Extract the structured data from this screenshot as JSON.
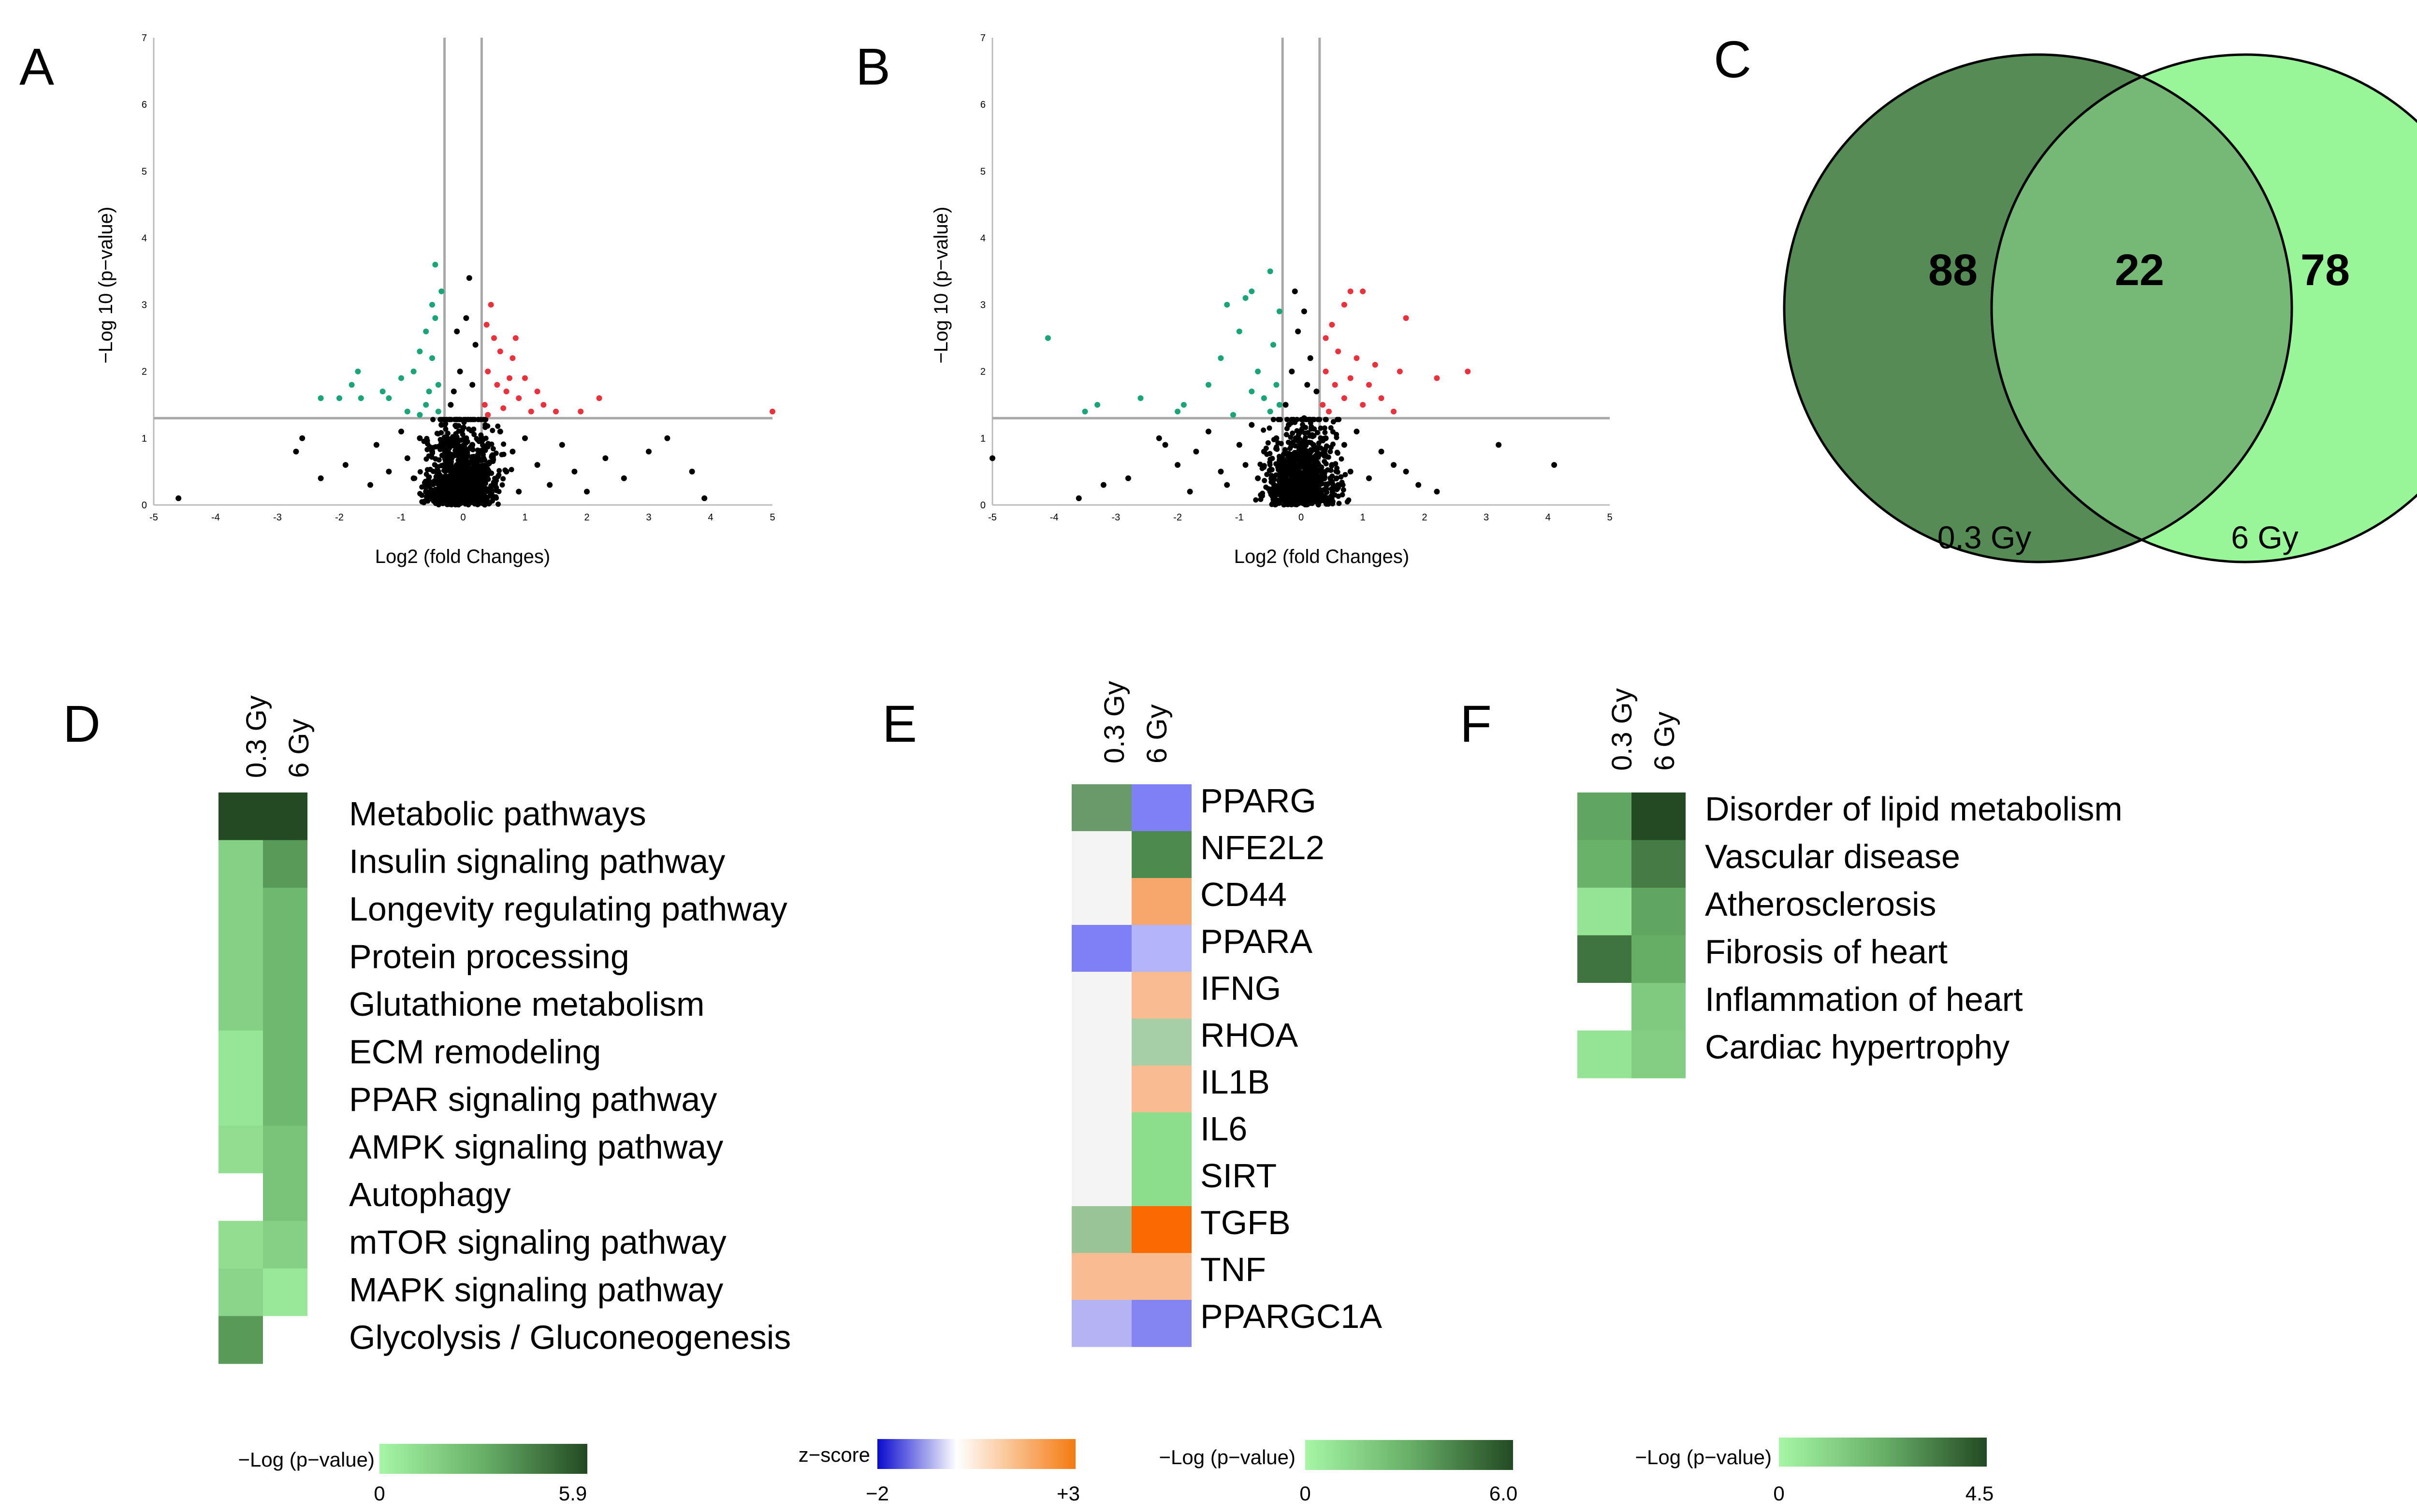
{
  "panels": [
    "A",
    "B",
    "C",
    "D",
    "E",
    "F"
  ],
  "volcano": [
    {
      "panel": "A",
      "type": "scatter",
      "xlabel": "Log2 (fold Changes)",
      "ylabel": "−Log 10 (p−value)",
      "xlim": [
        -5,
        5
      ],
      "ylim": [
        0,
        7
      ],
      "xticks": [
        -5,
        -4,
        -3,
        -2,
        -1,
        0,
        1,
        2,
        3,
        4,
        5
      ],
      "yticks": [
        0,
        1,
        2,
        3,
        4,
        5,
        6,
        7
      ],
      "vlines": [
        -0.3,
        0.3
      ],
      "hline": 1.3,
      "colors": {
        "down": "#1aa478",
        "up": "#e8333f",
        "ns": "#000000"
      },
      "down": [
        [
          -2.3,
          1.6
        ],
        [
          -2.0,
          1.6
        ],
        [
          -1.8,
          1.8
        ],
        [
          -1.7,
          2.0
        ],
        [
          -1.65,
          1.6
        ],
        [
          -1.2,
          1.6
        ],
        [
          -1.0,
          1.9
        ],
        [
          -0.8,
          2.0
        ],
        [
          -0.7,
          2.3
        ],
        [
          -0.6,
          2.6
        ],
        [
          -0.5,
          3.0
        ],
        [
          -0.45,
          3.6
        ],
        [
          -0.4,
          1.8
        ],
        [
          -0.9,
          1.4
        ],
        [
          -0.6,
          1.5
        ],
        [
          -0.5,
          2.2
        ],
        [
          -0.7,
          1.35
        ],
        [
          -0.4,
          1.4
        ],
        [
          -0.35,
          3.2
        ],
        [
          -1.3,
          1.7
        ],
        [
          -0.55,
          1.7
        ],
        [
          -0.45,
          2.8
        ]
      ],
      "up": [
        [
          0.35,
          1.5
        ],
        [
          0.4,
          2.0
        ],
        [
          0.45,
          3.0
        ],
        [
          0.5,
          2.5
        ],
        [
          0.55,
          1.8
        ],
        [
          0.6,
          2.3
        ],
        [
          0.7,
          1.7
        ],
        [
          0.75,
          1.9
        ],
        [
          0.8,
          2.2
        ],
        [
          0.9,
          1.6
        ],
        [
          1.0,
          1.9
        ],
        [
          1.1,
          1.4
        ],
        [
          1.2,
          1.7
        ],
        [
          1.3,
          1.5
        ],
        [
          1.5,
          1.4
        ],
        [
          1.9,
          1.4
        ],
        [
          2.2,
          1.6
        ],
        [
          5.0,
          1.4
        ],
        [
          0.4,
          1.35
        ],
        [
          0.65,
          1.45
        ],
        [
          0.85,
          2.5
        ],
        [
          0.38,
          2.7
        ]
      ],
      "ns": [
        [
          -4.6,
          0.1
        ],
        [
          -2.7,
          0.8
        ],
        [
          -2.6,
          1.0
        ],
        [
          -2.3,
          0.4
        ],
        [
          -1.9,
          0.6
        ],
        [
          -1.5,
          0.3
        ],
        [
          -1.4,
          0.9
        ],
        [
          -1.2,
          0.5
        ],
        [
          -1.0,
          1.1
        ],
        [
          -0.9,
          0.7
        ],
        [
          -0.8,
          0.4
        ],
        [
          -0.7,
          1.0
        ],
        [
          -0.6,
          0.2
        ],
        [
          -0.5,
          0.8
        ],
        [
          -0.4,
          0.5
        ],
        [
          -0.35,
          1.2
        ],
        [
          -0.3,
          0.3
        ],
        [
          -0.25,
          0.9
        ],
        [
          -0.2,
          0.1
        ],
        [
          -0.15,
          1.7
        ],
        [
          -0.1,
          0.6
        ],
        [
          -0.05,
          2.0
        ],
        [
          0.0,
          0.2
        ],
        [
          0.05,
          1.0
        ],
        [
          0.1,
          0.4
        ],
        [
          0.15,
          1.8
        ],
        [
          0.2,
          2.4
        ],
        [
          0.25,
          0.7
        ],
        [
          0.1,
          3.4
        ],
        [
          0.3,
          0.5
        ],
        [
          0.4,
          0.9
        ],
        [
          0.5,
          0.3
        ],
        [
          0.6,
          1.1
        ],
        [
          0.7,
          0.5
        ],
        [
          0.8,
          0.8
        ],
        [
          0.9,
          0.2
        ],
        [
          1.0,
          1.0
        ],
        [
          1.2,
          0.6
        ],
        [
          1.4,
          0.3
        ],
        [
          1.6,
          0.9
        ],
        [
          1.8,
          0.5
        ],
        [
          2.0,
          0.2
        ],
        [
          2.3,
          0.7
        ],
        [
          2.6,
          0.4
        ],
        [
          3.0,
          0.8
        ],
        [
          3.3,
          1.0
        ],
        [
          3.7,
          0.5
        ],
        [
          3.9,
          0.1
        ],
        [
          -0.2,
          1.5
        ],
        [
          0.15,
          0.9
        ],
        [
          -0.1,
          2.6
        ],
        [
          0.05,
          2.8
        ]
      ]
    },
    {
      "panel": "B",
      "type": "scatter",
      "xlabel": "Log2 (fold Changes)",
      "ylabel": "−Log 10 (p−value)",
      "xlim": [
        -5,
        5
      ],
      "ylim": [
        0,
        7
      ],
      "xticks": [
        -5,
        -4,
        -3,
        -2,
        -1,
        0,
        1,
        2,
        3,
        4,
        5
      ],
      "yticks": [
        0,
        1,
        2,
        3,
        4,
        5,
        6,
        7
      ],
      "vlines": [
        -0.3,
        0.3
      ],
      "hline": 1.3,
      "colors": {
        "down": "#1aa478",
        "up": "#e8333f",
        "ns": "#000000"
      },
      "down": [
        [
          -4.1,
          2.5
        ],
        [
          -3.5,
          1.4
        ],
        [
          -3.3,
          1.5
        ],
        [
          -2.6,
          1.6
        ],
        [
          -2.0,
          1.4
        ],
        [
          -1.9,
          1.5
        ],
        [
          -1.5,
          1.8
        ],
        [
          -1.3,
          2.2
        ],
        [
          -1.2,
          3.0
        ],
        [
          -1.0,
          2.6
        ],
        [
          -0.9,
          3.1
        ],
        [
          -0.8,
          3.2
        ],
        [
          -0.7,
          2.0
        ],
        [
          -0.6,
          1.6
        ],
        [
          -0.5,
          3.5
        ],
        [
          -0.5,
          1.4
        ],
        [
          -0.45,
          2.4
        ],
        [
          -0.4,
          1.8
        ],
        [
          -0.35,
          1.5
        ],
        [
          -0.35,
          2.9
        ],
        [
          -1.1,
          1.35
        ],
        [
          -0.8,
          1.7
        ]
      ],
      "up": [
        [
          0.35,
          1.5
        ],
        [
          0.4,
          2.0
        ],
        [
          0.5,
          2.7
        ],
        [
          0.55,
          1.8
        ],
        [
          0.6,
          2.3
        ],
        [
          0.7,
          1.6
        ],
        [
          0.8,
          1.9
        ],
        [
          0.9,
          2.2
        ],
        [
          1.0,
          1.5
        ],
        [
          1.1,
          1.8
        ],
        [
          1.2,
          2.1
        ],
        [
          1.3,
          1.6
        ],
        [
          0.8,
          3.2
        ],
        [
          0.7,
          3.0
        ],
        [
          1.5,
          1.4
        ],
        [
          1.6,
          2.0
        ],
        [
          1.7,
          2.8
        ],
        [
          2.2,
          1.9
        ],
        [
          2.7,
          2.0
        ],
        [
          0.45,
          1.4
        ],
        [
          1.0,
          3.2
        ],
        [
          0.4,
          2.5
        ]
      ],
      "ns": [
        [
          -5.0,
          0.7
        ],
        [
          -3.6,
          0.1
        ],
        [
          -3.2,
          0.3
        ],
        [
          -2.8,
          0.4
        ],
        [
          -2.3,
          1.0
        ],
        [
          -2.2,
          0.9
        ],
        [
          -2.0,
          0.6
        ],
        [
          -1.8,
          0.2
        ],
        [
          -1.7,
          0.8
        ],
        [
          -1.5,
          1.1
        ],
        [
          -1.3,
          0.5
        ],
        [
          -1.2,
          0.3
        ],
        [
          -1.0,
          0.9
        ],
        [
          -0.9,
          0.6
        ],
        [
          -0.8,
          1.2
        ],
        [
          -0.7,
          0.4
        ],
        [
          -0.6,
          0.8
        ],
        [
          -0.5,
          0.2
        ],
        [
          -0.4,
          1.0
        ],
        [
          -0.3,
          0.6
        ],
        [
          -0.25,
          1.5
        ],
        [
          -0.2,
          0.3
        ],
        [
          -0.15,
          2.0
        ],
        [
          -0.1,
          0.7
        ],
        [
          -0.05,
          2.6
        ],
        [
          0.0,
          0.1
        ],
        [
          0.05,
          1.3
        ],
        [
          0.1,
          0.5
        ],
        [
          0.15,
          2.2
        ],
        [
          0.2,
          0.9
        ],
        [
          0.25,
          1.7
        ],
        [
          0.3,
          0.4
        ],
        [
          0.4,
          1.0
        ],
        [
          0.5,
          0.6
        ],
        [
          0.6,
          0.3
        ],
        [
          0.7,
          0.9
        ],
        [
          0.8,
          0.5
        ],
        [
          0.9,
          1.1
        ],
        [
          1.1,
          0.4
        ],
        [
          1.3,
          0.8
        ],
        [
          1.5,
          0.6
        ],
        [
          1.7,
          0.5
        ],
        [
          1.9,
          0.3
        ],
        [
          2.2,
          0.2
        ],
        [
          3.2,
          0.9
        ],
        [
          4.1,
          0.6
        ],
        [
          -0.1,
          3.2
        ],
        [
          0.05,
          2.9
        ],
        [
          -0.2,
          1.2
        ],
        [
          0.1,
          1.8
        ]
      ]
    }
  ],
  "venn": {
    "type": "venn",
    "sets": [
      {
        "label": "0.3 Gy",
        "only": 88,
        "color": "#558b55"
      },
      {
        "label": "6 Gy",
        "only": 78,
        "color": "#98f598"
      }
    ],
    "overlap": 22,
    "overlap_color": "#76b876"
  },
  "heatmaps": [
    {
      "panel": "D",
      "type": "heatmap",
      "columns": [
        "0.3 Gy",
        "6 Gy"
      ],
      "rows": [
        "Metabolic pathways",
        "Insulin signaling pathway",
        "Longevity regulating pathway",
        "Protein processing",
        "Glutathione metabolism",
        "ECM remodeling",
        "PPAR signaling pathway",
        "AMPK signaling pathway",
        "Autophagy",
        "mTOR signaling pathway",
        "MAPK signaling pathway",
        "Glycolysis / Gluconeogenesis"
      ],
      "values": [
        [
          5.9,
          5.9
        ],
        [
          1.6,
          3.6
        ],
        [
          1.6,
          2.6
        ],
        [
          1.6,
          2.6
        ],
        [
          1.6,
          2.6
        ],
        [
          0.7,
          2.6
        ],
        [
          0.7,
          2.6
        ],
        [
          1.0,
          2.1
        ],
        [
          null,
          2.1
        ],
        [
          1.0,
          1.6
        ],
        [
          1.4,
          0.6
        ],
        [
          3.6,
          null
        ]
      ],
      "legend": {
        "title": "−Log (p−value)",
        "min": "0",
        "max": "5.9"
      }
    },
    {
      "panel": "E",
      "type": "heatmap",
      "columns": [
        "0.3 Gy",
        "6 Gy"
      ],
      "rows": [
        "PPARG",
        "NFE2L2",
        "CD44",
        "PPARA",
        "IFNG",
        "RHOA",
        "IL1B",
        "IL6",
        "SIRT",
        "TGFB",
        "TNF",
        "PPARGC1A"
      ],
      "cell_colors": [
        [
          "#6a9a6a",
          "#8080f5"
        ],
        [
          "#f4f4f4",
          "#4d8a4d"
        ],
        [
          "#f4f4f4",
          "#f7a66c"
        ],
        [
          "#8080f5",
          "#b4b4fa"
        ],
        [
          "#f4f4f4",
          "#f9bb92"
        ],
        [
          "#f4f4f4",
          "#a7cfa7"
        ],
        [
          "#f4f4f4",
          "#f9bb92"
        ],
        [
          "#f4f4f4",
          "#8cde8c"
        ],
        [
          "#f4f4f4",
          "#8cde8c"
        ],
        [
          "#98c498",
          "#fa6a00"
        ],
        [
          "#f9bb92",
          "#f9bb92"
        ],
        [
          "#b4b4f5",
          "#8484f2"
        ]
      ],
      "legend": {
        "title": "z−score",
        "min": "−2",
        "max": "+3"
      }
    },
    {
      "panel": "F",
      "type": "heatmap",
      "columns": [
        "0.3 Gy",
        "6 Gy"
      ],
      "rows": [
        "Disorder of lipid metabolism",
        "Vascular disease",
        "Atherosclerosis",
        "Fibrosis of heart",
        "Inflammation of heart",
        "Cardiac hypertrophy"
      ],
      "values": [
        [
          2.5,
          4.5
        ],
        [
          2.2,
          3.4
        ],
        [
          0.6,
          2.5
        ],
        [
          3.6,
          2.3
        ],
        [
          null,
          1.4
        ],
        [
          0.6,
          1.3
        ]
      ],
      "legend": {
        "title": "−Log (p−value)",
        "min": "0",
        "max": "4.5"
      }
    }
  ],
  "extra_legend": {
    "title": "−Log (p−value)",
    "min": "0",
    "max": "6.0"
  }
}
